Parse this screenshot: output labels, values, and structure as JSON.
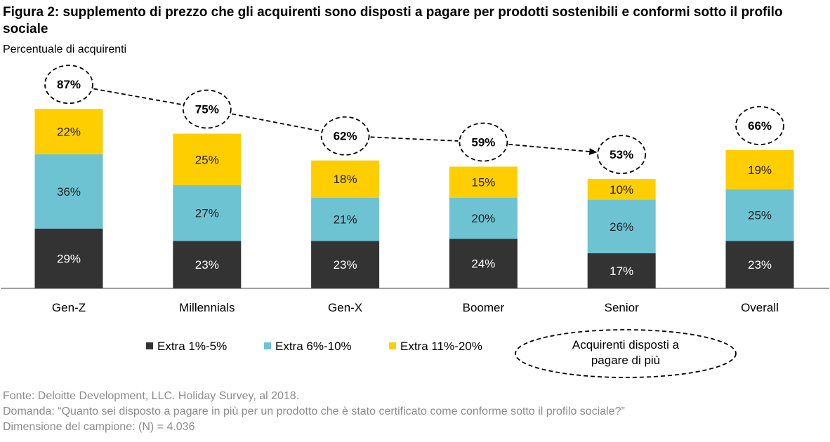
{
  "title": "Figura 2: supplemento di prezzo che gli acquirenti sono disposti a pagare per prodotti sostenibili e conformi sotto il profilo sociale",
  "subtitle": "Percentuale di acquirenti",
  "chart_data": {
    "type": "bar",
    "stacked": true,
    "categories": [
      "Gen-Z",
      "Millennials",
      "Gen-X",
      "Boomer",
      "Senior",
      "Overall"
    ],
    "series": [
      {
        "name": "Extra 1%-5%",
        "values": [
          29,
          23,
          23,
          24,
          17,
          23
        ],
        "labels": [
          "29%",
          "23%",
          "23%",
          "24%",
          "17%",
          "23%"
        ],
        "color": "#333333",
        "label_color": "#ffffff"
      },
      {
        "name": "Extra 6%-10%",
        "values": [
          36,
          27,
          21,
          20,
          26,
          25
        ],
        "labels": [
          "36%",
          "27%",
          "21%",
          "20%",
          "26%",
          "25%"
        ],
        "color": "#6ec3d2",
        "label_color": "#222222"
      },
      {
        "name": "Extra 11%-20%",
        "values": [
          22,
          25,
          18,
          15,
          10,
          19
        ],
        "labels": [
          "22%",
          "25%",
          "18%",
          "15%",
          "10%",
          "19%"
        ],
        "color": "#fece00",
        "label_color": "#222222"
      }
    ],
    "totals": [
      87,
      75,
      62,
      59,
      53,
      66
    ],
    "total_labels": [
      "87%",
      "75%",
      "62%",
      "59%",
      "53%",
      "66%"
    ],
    "total_note": "Acquirenti disposti a pagare di più",
    "ylim": [
      0,
      100
    ],
    "grid": false,
    "legend_position": "bottom"
  },
  "footer": {
    "source": "Fonte: Deloitte Development, LLC. Holiday Survey, al 2018.",
    "question": "Domanda: “Quanto sei disposto a pagare in più per un prodotto che è stato certificato come conforme sotto il profilo sociale?”",
    "sample": "Dimensione del campione: (N) = 4.036"
  }
}
